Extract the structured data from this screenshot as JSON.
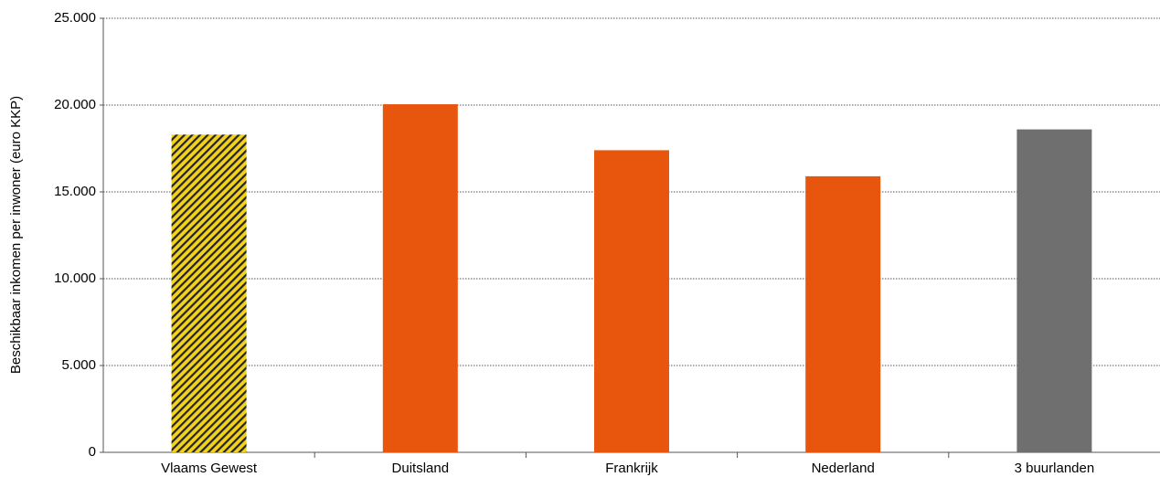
{
  "chart_data": {
    "type": "bar",
    "y_label": "Beschikbaar inkomen per inwoner (euro KKP)",
    "categories": [
      "Vlaams Gewest",
      "Duitsland",
      "Frankrijk",
      "Nederland",
      "3 buurlanden"
    ],
    "values": [
      18300,
      20050,
      17400,
      15900,
      18600
    ],
    "colors": [
      "#f2d21c",
      "#e8560e",
      "#e8560e",
      "#e8560e",
      "#6f6f6f"
    ],
    "hatched": [
      true,
      false,
      false,
      false,
      false
    ],
    "ylim": [
      0,
      25000
    ],
    "yticks": [
      0,
      {
        "value": 5000,
        "label": "5.000"
      },
      {
        "value": 10000,
        "label": "10.000"
      },
      {
        "value": 15000,
        "label": "15.000"
      },
      {
        "value": 20000,
        "label": "20.000"
      },
      {
        "value": 25000,
        "label": "25.000"
      }
    ],
    "grid": true
  }
}
